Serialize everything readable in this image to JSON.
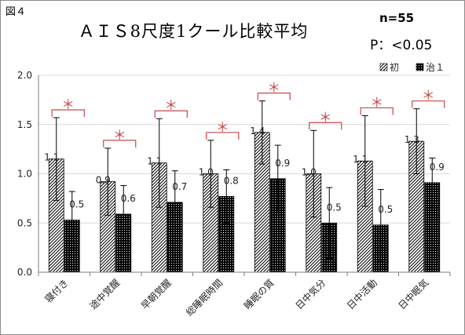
{
  "figure_label": "図４",
  "notes": {
    "n": "n=55",
    "p": "P：<0.05"
  },
  "colors": {
    "significance": "#c84848",
    "bar_border": "#000000",
    "grid": "#d9d9d9"
  },
  "chart_data": {
    "type": "bar",
    "title": "ＡＩＳ8尺度1クール比較平均",
    "xlabel": "",
    "ylabel": "",
    "ylim": [
      0,
      2.0
    ],
    "y_ticks": [
      "0.0",
      "0.5",
      "1.0",
      "1.5",
      "2.0"
    ],
    "categories": [
      "寝付き",
      "途中覚醒",
      "早朝覚醒",
      "総睡眠時間",
      "睡眠の質",
      "日中気分",
      "日中活動",
      "日中眠気"
    ],
    "legend_position": "top-right",
    "grid": true,
    "series": [
      {
        "name": "初",
        "pattern": "diagonal-hatch",
        "values": [
          1.15,
          0.92,
          1.11,
          1.0,
          1.42,
          1.0,
          1.13,
          1.33
        ],
        "error": [
          0.42,
          0.34,
          0.45,
          0.34,
          0.32,
          0.44,
          0.46,
          0.33
        ],
        "labels": [
          "1.1",
          "0.9",
          "1.1",
          "1.0",
          "1.4",
          "1.0",
          "1.1",
          "1.3"
        ]
      },
      {
        "name": "治１",
        "pattern": "dots-on-black",
        "values": [
          0.53,
          0.59,
          0.71,
          0.77,
          0.95,
          0.5,
          0.48,
          0.91
        ],
        "error": [
          0.29,
          0.29,
          0.32,
          0.27,
          0.34,
          0.36,
          0.36,
          0.25
        ],
        "labels": [
          "0.5",
          "0.6",
          "0.7",
          "0.8",
          "0.9",
          "0.5",
          "0.5",
          "0.9"
        ]
      }
    ],
    "significance": {
      "marker": "＊",
      "pairs": [
        0,
        1,
        2,
        3,
        4,
        5,
        6,
        7
      ]
    }
  }
}
